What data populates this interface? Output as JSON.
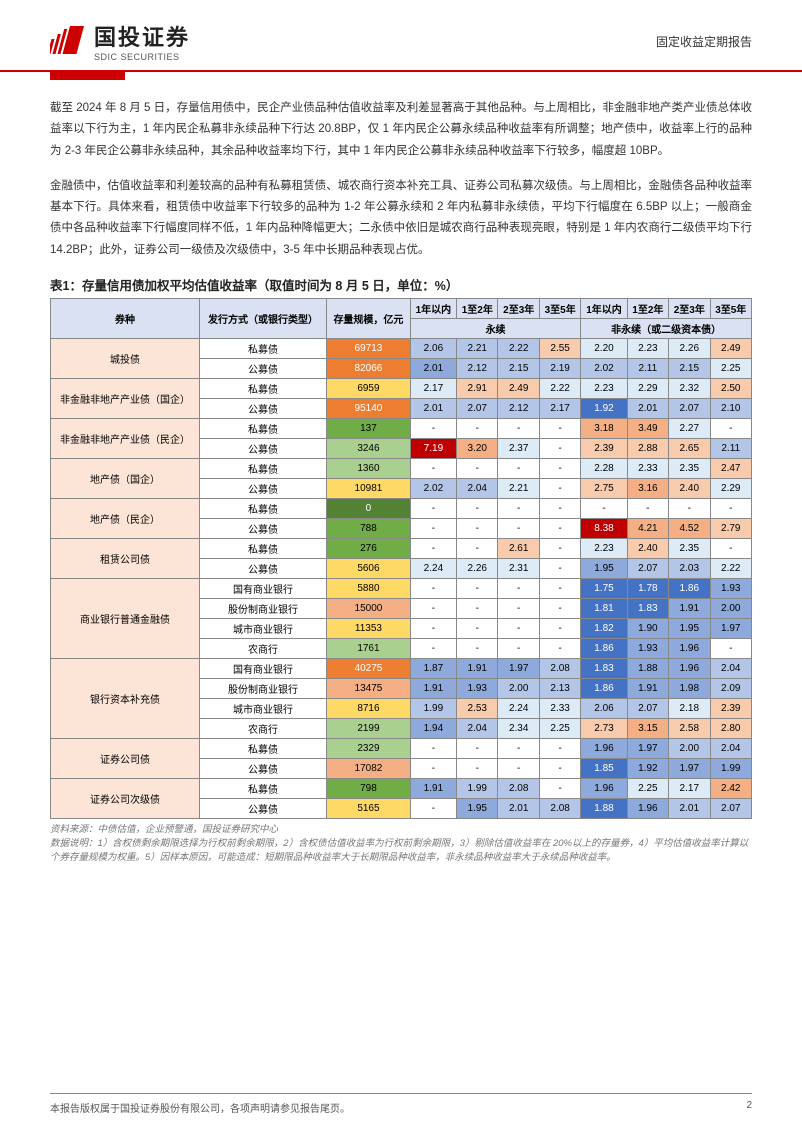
{
  "header": {
    "logo_cn": "国投证券",
    "logo_en": "SDIC SECURITIES",
    "doc_type": "固定收益定期报告"
  },
  "paragraphs": {
    "p1": "截至 2024 年 8 月 5 日，存量信用债中，民企产业债品种估值收益率及利差显著高于其他品种。与上周相比，非金融非地产类产业债总体收益率以下行为主，1 年内民企私募非永续品种下行达 20.8BP，仅 1 年内民企公募永续品种收益率有所调整；地产债中，收益率上行的品种为 2-3 年民企公募非永续品种，其余品种收益率均下行，其中 1 年内民企公募非永续品种收益率下行较多，幅度超 10BP。",
    "p2": "金融债中，估值收益率和利差较高的品种有私募租赁债、城农商行资本补充工具、证券公司私募次级债。与上周相比，金融债各品种收益率基本下行。具体来看，租赁债中收益率下行较多的品种为 1-2 年公募永续和 2 年内私募非永续债，平均下行幅度在 6.5BP 以上；一般商金债中各品种收益率下行幅度同样不低，1 年内品种降幅更大；二永债中依旧是城农商行品种表现亮眼，特别是 1 年内农商行二级债平均下行 14.2BP；此外，证券公司一级债及次级债中，3-5 年中长期品种表现占优。"
  },
  "table": {
    "title": "表1：存量信用债加权平均估值收益率（取值时间为 8 月 5 日，单位：%）",
    "head": {
      "c1": "券种",
      "c2": "发行方式（或银行类型）",
      "c3": "存量规模，亿元",
      "g1": "永续",
      "g2": "非永续（或二级资本债）",
      "y1": "1年以内",
      "y2": "1至2年",
      "y3": "2至3年",
      "y4": "3至5年"
    },
    "rows": [
      {
        "cat": "城投债",
        "rs": 2,
        "sub": "私募债",
        "vol": "69713",
        "vc": "#ed7d31",
        "d": [
          "2.06",
          "2.21",
          "2.22",
          "2.55",
          "2.20",
          "2.23",
          "2.26",
          "2.49"
        ],
        "bg": [
          "#b4c6e7",
          "#b4c6e7",
          "#b4c6e7",
          "#f8cbad",
          "#ddebf7",
          "#ddebf7",
          "#ddebf7",
          "#f8cbad"
        ]
      },
      {
        "sub": "公募债",
        "vol": "82066",
        "vc": "#ed7d31",
        "d": [
          "2.01",
          "2.12",
          "2.15",
          "2.19",
          "2.02",
          "2.11",
          "2.15",
          "2.25"
        ],
        "bg": [
          "#8ea9db",
          "#b4c6e7",
          "#b4c6e7",
          "#b4c6e7",
          "#b4c6e7",
          "#b4c6e7",
          "#b4c6e7",
          "#ddebf7"
        ]
      },
      {
        "cat": "非金融非地产产业债（国企）",
        "rs": 2,
        "sub": "私募债",
        "vol": "6959",
        "vc": "#ffd966",
        "d": [
          "2.17",
          "2.91",
          "2.49",
          "2.22",
          "2.23",
          "2.29",
          "2.32",
          "2.50"
        ],
        "bg": [
          "#ddebf7",
          "#f8cbad",
          "#f8cbad",
          "#ddebf7",
          "#ddebf7",
          "#ddebf7",
          "#ddebf7",
          "#f8cbad"
        ]
      },
      {
        "sub": "公募债",
        "vol": "95140",
        "vc": "#ed7d31",
        "d": [
          "2.01",
          "2.07",
          "2.12",
          "2.17",
          "1.92",
          "2.01",
          "2.07",
          "2.10"
        ],
        "bg": [
          "#b4c6e7",
          "#b4c6e7",
          "#b4c6e7",
          "#b4c6e7",
          "#4472c4",
          "#b4c6e7",
          "#b4c6e7",
          "#b4c6e7"
        ]
      },
      {
        "cat": "非金融非地产产业债（民企）",
        "rs": 2,
        "sub": "私募债",
        "vol": "137",
        "vc": "#70ad47",
        "d": [
          "-",
          "-",
          "-",
          "-",
          "3.18",
          "3.49",
          "2.27",
          "-"
        ],
        "bg": [
          "",
          "",
          "",
          "",
          "#f4b084",
          "#f4b084",
          "#ddebf7",
          ""
        ]
      },
      {
        "sub": "公募债",
        "vol": "3246",
        "vc": "#a9d08e",
        "d": [
          "7.19",
          "3.20",
          "2.37",
          "-",
          "2.39",
          "2.88",
          "2.65",
          "2.11"
        ],
        "bg": [
          "#c00000",
          "#f4b084",
          "#ddebf7",
          "",
          "#f8cbad",
          "#f8cbad",
          "#f8cbad",
          "#b4c6e7"
        ]
      },
      {
        "cat": "地产债（国企）",
        "rs": 2,
        "sub": "私募债",
        "vol": "1360",
        "vc": "#a9d08e",
        "d": [
          "-",
          "-",
          "-",
          "-",
          "2.28",
          "2.33",
          "2.35",
          "2.47"
        ],
        "bg": [
          "",
          "",
          "",
          "",
          "#ddebf7",
          "#ddebf7",
          "#ddebf7",
          "#f8cbad"
        ]
      },
      {
        "sub": "公募债",
        "vol": "10981",
        "vc": "#ffd966",
        "d": [
          "2.02",
          "2.04",
          "2.21",
          "-",
          "2.75",
          "3.16",
          "2.40",
          "2.29"
        ],
        "bg": [
          "#b4c6e7",
          "#b4c6e7",
          "#ddebf7",
          "",
          "#f8cbad",
          "#f4b084",
          "#f8cbad",
          "#ddebf7"
        ]
      },
      {
        "cat": "地产债（民企）",
        "rs": 2,
        "sub": "私募债",
        "vol": "0",
        "vc": "#548235",
        "d": [
          "-",
          "-",
          "-",
          "-",
          "-",
          "-",
          "-",
          "-"
        ],
        "bg": [
          "",
          "",
          "",
          "",
          "",
          "",
          "",
          ""
        ]
      },
      {
        "sub": "公募债",
        "vol": "788",
        "vc": "#70ad47",
        "d": [
          "-",
          "-",
          "-",
          "-",
          "8.38",
          "4.21",
          "4.52",
          "2.79"
        ],
        "bg": [
          "",
          "",
          "",
          "",
          "#c00000",
          "#f4b084",
          "#f4b084",
          "#f8cbad"
        ]
      },
      {
        "cat": "租赁公司债",
        "rs": 2,
        "sub": "私募债",
        "vol": "276",
        "vc": "#70ad47",
        "d": [
          "-",
          "-",
          "2.61",
          "-",
          "2.23",
          "2.40",
          "2.35",
          "-"
        ],
        "bg": [
          "",
          "",
          "#f8cbad",
          "",
          "#ddebf7",
          "#f8cbad",
          "#ddebf7",
          ""
        ]
      },
      {
        "sub": "公募债",
        "vol": "5606",
        "vc": "#ffd966",
        "d": [
          "2.24",
          "2.26",
          "2.31",
          "-",
          "1.95",
          "2.07",
          "2.03",
          "2.22"
        ],
        "bg": [
          "#ddebf7",
          "#ddebf7",
          "#ddebf7",
          "",
          "#8ea9db",
          "#b4c6e7",
          "#b4c6e7",
          "#ddebf7"
        ]
      },
      {
        "cat": "商业银行普通金融债",
        "rs": 4,
        "sub": "国有商业银行",
        "vol": "5880",
        "vc": "#ffd966",
        "d": [
          "-",
          "-",
          "-",
          "-",
          "1.75",
          "1.78",
          "1.86",
          "1.93"
        ],
        "bg": [
          "",
          "",
          "",
          "",
          "#4472c4",
          "#4472c4",
          "#4472c4",
          "#8ea9db"
        ]
      },
      {
        "sub": "股份制商业银行",
        "vol": "15000",
        "vc": "#f4b084",
        "d": [
          "-",
          "-",
          "-",
          "-",
          "1.81",
          "1.83",
          "1.91",
          "2.00"
        ],
        "bg": [
          "",
          "",
          "",
          "",
          "#4472c4",
          "#4472c4",
          "#8ea9db",
          "#8ea9db"
        ]
      },
      {
        "sub": "城市商业银行",
        "vol": "11353",
        "vc": "#ffd966",
        "d": [
          "-",
          "-",
          "-",
          "-",
          "1.82",
          "1.90",
          "1.95",
          "1.97"
        ],
        "bg": [
          "",
          "",
          "",
          "",
          "#4472c4",
          "#8ea9db",
          "#8ea9db",
          "#8ea9db"
        ]
      },
      {
        "sub": "农商行",
        "vol": "1761",
        "vc": "#a9d08e",
        "d": [
          "-",
          "-",
          "-",
          "-",
          "1.86",
          "1.93",
          "1.96",
          "-"
        ],
        "bg": [
          "",
          "",
          "",
          "",
          "#4472c4",
          "#8ea9db",
          "#8ea9db",
          ""
        ]
      },
      {
        "cat": "银行资本补充债",
        "rs": 4,
        "sub": "国有商业银行",
        "vol": "40275",
        "vc": "#ed7d31",
        "d": [
          "1.87",
          "1.91",
          "1.97",
          "2.08",
          "1.83",
          "1.88",
          "1.96",
          "2.04"
        ],
        "bg": [
          "#8ea9db",
          "#8ea9db",
          "#8ea9db",
          "#b4c6e7",
          "#4472c4",
          "#8ea9db",
          "#8ea9db",
          "#b4c6e7"
        ]
      },
      {
        "sub": "股份制商业银行",
        "vol": "13475",
        "vc": "#f4b084",
        "d": [
          "1.91",
          "1.93",
          "2.00",
          "2.13",
          "1.86",
          "1.91",
          "1.98",
          "2.09"
        ],
        "bg": [
          "#8ea9db",
          "#8ea9db",
          "#b4c6e7",
          "#b4c6e7",
          "#4472c4",
          "#8ea9db",
          "#8ea9db",
          "#b4c6e7"
        ]
      },
      {
        "sub": "城市商业银行",
        "vol": "8716",
        "vc": "#ffd966",
        "d": [
          "1.99",
          "2.53",
          "2.24",
          "2.33",
          "2.06",
          "2.07",
          "2.18",
          "2.39"
        ],
        "bg": [
          "#b4c6e7",
          "#f8cbad",
          "#ddebf7",
          "#ddebf7",
          "#b4c6e7",
          "#b4c6e7",
          "#ddebf7",
          "#f8cbad"
        ]
      },
      {
        "sub": "农商行",
        "vol": "2199",
        "vc": "#a9d08e",
        "d": [
          "1.94",
          "2.04",
          "2.34",
          "2.25",
          "2.73",
          "3.15",
          "2.58",
          "2.80"
        ],
        "bg": [
          "#8ea9db",
          "#b4c6e7",
          "#ddebf7",
          "#ddebf7",
          "#f8cbad",
          "#f4b084",
          "#f8cbad",
          "#f8cbad"
        ]
      },
      {
        "cat": "证券公司债",
        "rs": 2,
        "sub": "私募债",
        "vol": "2329",
        "vc": "#a9d08e",
        "d": [
          "-",
          "-",
          "-",
          "-",
          "1.96",
          "1.97",
          "2.00",
          "2.04"
        ],
        "bg": [
          "",
          "",
          "",
          "",
          "#8ea9db",
          "#8ea9db",
          "#b4c6e7",
          "#b4c6e7"
        ]
      },
      {
        "sub": "公募债",
        "vol": "17082",
        "vc": "#f4b084",
        "d": [
          "-",
          "-",
          "-",
          "-",
          "1.85",
          "1.92",
          "1.97",
          "1.99"
        ],
        "bg": [
          "",
          "",
          "",
          "",
          "#4472c4",
          "#8ea9db",
          "#8ea9db",
          "#8ea9db"
        ]
      },
      {
        "cat": "证券公司次级债",
        "rs": 2,
        "sub": "私募债",
        "vol": "798",
        "vc": "#70ad47",
        "d": [
          "1.91",
          "1.99",
          "2.08",
          "-",
          "1.96",
          "2.25",
          "2.17",
          "2.42"
        ],
        "bg": [
          "#8ea9db",
          "#b4c6e7",
          "#b4c6e7",
          "",
          "#8ea9db",
          "#ddebf7",
          "#ddebf7",
          "#f4b084"
        ]
      },
      {
        "sub": "公募债",
        "vol": "5165",
        "vc": "#ffd966",
        "d": [
          "-",
          "1.95",
          "2.01",
          "2.08",
          "1.88",
          "1.96",
          "2.01",
          "2.07"
        ],
        "bg": [
          "",
          "#8ea9db",
          "#b4c6e7",
          "#b4c6e7",
          "#4472c4",
          "#8ea9db",
          "#b4c6e7",
          "#b4c6e7"
        ]
      }
    ],
    "source": "资料来源：中债估值，企业预警通，国投证券研究中心",
    "note": "数据说明：1）含权债剩余期限选择为行权前剩余期限，2）含权债估值收益率为行权前剩余期限，3）剔除估值收益率在 20%以上的存量券，4）平均估值收益率计算以个券存量规模为权重。5）因样本原因，可能造成：短期限品种收益率大于长期限品种收益率，非永续品种收益率大于永续品种收益率。"
  },
  "footer": {
    "left": "本报告版权属于国投证券股份有限公司，各项声明请参见报告尾页。",
    "page": "2"
  },
  "colors": {
    "red": "#c00000",
    "header_blue": "#d9e1f2",
    "cat_bg": "#fce4d6"
  }
}
